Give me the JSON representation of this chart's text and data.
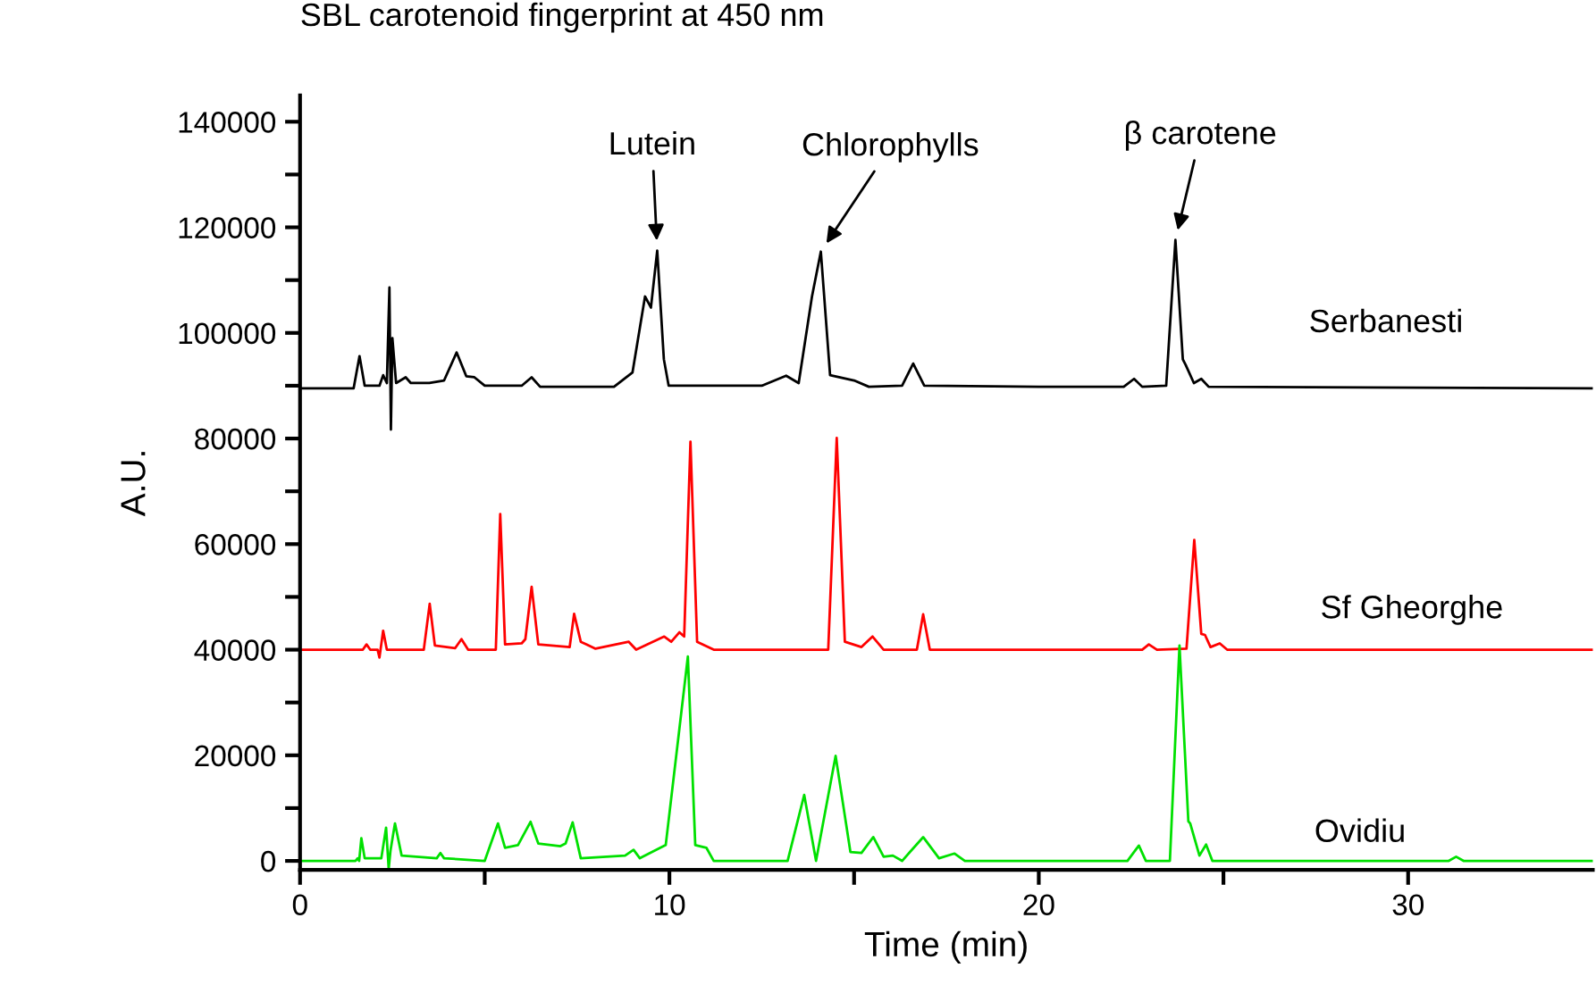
{
  "chart_data": {
    "type": "line",
    "title": "SBL carotenoid fingerprint at 450 nm",
    "xlabel": "Time (min)",
    "ylabel": "A.U.",
    "xlim": [
      0,
      35
    ],
    "xticks": [
      0,
      {
        "value": 5,
        "label": null
      },
      10,
      {
        "value": 15,
        "label": null
      },
      20,
      {
        "value": 25,
        "label": null
      },
      30
    ],
    "ylim": [
      -1700,
      145000
    ],
    "yticks": [
      0,
      {
        "value": 10000,
        "label": null
      },
      20000,
      {
        "value": 30000,
        "label": null
      },
      40000,
      {
        "value": 50000,
        "label": null
      },
      60000,
      {
        "value": 70000,
        "label": null
      },
      80000,
      {
        "value": 90000,
        "label": null
      },
      100000,
      {
        "value": 110000,
        "label": null
      },
      120000,
      {
        "value": 130000,
        "label": null
      },
      140000
    ],
    "grid": false,
    "legend": false,
    "marker": "none",
    "line_style": "solid",
    "annotations": [
      {
        "text": "Lutein",
        "x": 9.67,
        "y": 115600
      },
      {
        "text": "Chlorophylls",
        "x": 14.1,
        "y": 115400
      },
      {
        "text": "β carotene",
        "x": 23.7,
        "y": 117600
      }
    ],
    "series": [
      {
        "name": "Serbanesti",
        "color": "#000000",
        "x": [
          0,
          1.45,
          1.61,
          1.75,
          2.15,
          2.25,
          2.35,
          2.42,
          2.46,
          2.5,
          2.6,
          2.86,
          3.0,
          3.5,
          3.9,
          4.24,
          4.5,
          4.72,
          5.0,
          6.0,
          6.27,
          6.5,
          8.5,
          9.0,
          9.34,
          9.5,
          9.67,
          9.85,
          9.98,
          12.5,
          13.16,
          13.5,
          13.86,
          14.1,
          14.35,
          15.0,
          15.4,
          16.3,
          16.6,
          16.9,
          20,
          22.3,
          22.58,
          22.8,
          23.45,
          23.7,
          23.9,
          23.98,
          24.2,
          24.4,
          24.6,
          35
        ],
        "values": [
          89500,
          89500,
          95600,
          90000,
          90000,
          92000,
          90500,
          108600,
          81700,
          99000,
          90500,
          91600,
          90500,
          90500,
          91000,
          96300,
          91800,
          91600,
          90000,
          90000,
          91600,
          89800,
          89800,
          92500,
          106900,
          104800,
          115600,
          95000,
          90000,
          90000,
          91900,
          90500,
          106900,
          115400,
          92000,
          91000,
          89800,
          90000,
          94200,
          90000,
          89800,
          89800,
          91300,
          89800,
          90000,
          117600,
          95000,
          93900,
          90500,
          91300,
          89800,
          89500
        ]
      },
      {
        "name": "Sf Gheorghe",
        "color": "#ff0000",
        "x": [
          0,
          1.7,
          1.8,
          1.9,
          2.1,
          2.15,
          2.25,
          2.35,
          3.35,
          3.51,
          3.65,
          4.2,
          4.37,
          4.55,
          5.3,
          5.42,
          5.55,
          6.0,
          6.1,
          6.27,
          6.45,
          7.3,
          7.42,
          7.6,
          7.76,
          8.0,
          8.9,
          9.1,
          9.86,
          10.05,
          10.27,
          10.4,
          10.57,
          10.75,
          11.2,
          14.3,
          14.53,
          14.75,
          15.2,
          15.5,
          15.8,
          16.7,
          16.87,
          17.05,
          22.8,
          22.98,
          23.2,
          24.0,
          24.21,
          24.4,
          24.5,
          24.65,
          24.9,
          25.1,
          35
        ],
        "values": [
          40000,
          40000,
          41000,
          40000,
          40000,
          38500,
          43600,
          40000,
          40000,
          48700,
          40800,
          40300,
          42000,
          40000,
          40000,
          65700,
          41000,
          41200,
          42000,
          51900,
          41000,
          40500,
          46800,
          41500,
          41000,
          40200,
          41500,
          40000,
          42500,
          41500,
          43300,
          42500,
          79400,
          41500,
          40000,
          40000,
          80100,
          41500,
          40500,
          42500,
          40000,
          40000,
          46700,
          40000,
          40000,
          41000,
          40000,
          40200,
          60800,
          43000,
          42800,
          40500,
          41200,
          40000,
          40000
        ]
      },
      {
        "name": "Ovidiu",
        "color": "#00e000",
        "x": [
          0,
          1.5,
          1.56,
          1.6,
          1.66,
          1.75,
          2.2,
          2.33,
          2.4,
          2.45,
          2.57,
          2.75,
          3.7,
          3.8,
          3.9,
          5.0,
          5.36,
          5.55,
          5.9,
          6.24,
          6.45,
          7.05,
          7.19,
          7.38,
          7.6,
          8.8,
          9.03,
          9.2,
          9.9,
          10.27,
          10.5,
          10.7,
          11.0,
          11.2,
          13.2,
          13.65,
          13.97,
          14.5,
          14.9,
          15.2,
          15.52,
          15.8,
          16.05,
          16.3,
          16.87,
          17.3,
          17.72,
          18.0,
          22.4,
          22.71,
          22.9,
          23.55,
          23.81,
          24.05,
          24.1,
          24.35,
          24.53,
          24.7,
          31.1,
          31.3,
          31.5,
          35
        ],
        "values": [
          0,
          0,
          500,
          0,
          4300,
          500,
          500,
          6300,
          -1500,
          2000,
          7100,
          1000,
          500,
          1500,
          500,
          0,
          7100,
          2500,
          3000,
          7400,
          3300,
          2800,
          3300,
          7300,
          500,
          1000,
          2100,
          500,
          3000,
          25000,
          38700,
          3000,
          2500,
          0,
          0,
          12500,
          0,
          19900,
          1700,
          1500,
          4500,
          800,
          1000,
          0,
          4500,
          500,
          1400,
          0,
          0,
          2900,
          0,
          0,
          40800,
          7500,
          7100,
          1000,
          3100,
          0,
          0,
          800,
          0,
          0
        ]
      }
    ]
  }
}
